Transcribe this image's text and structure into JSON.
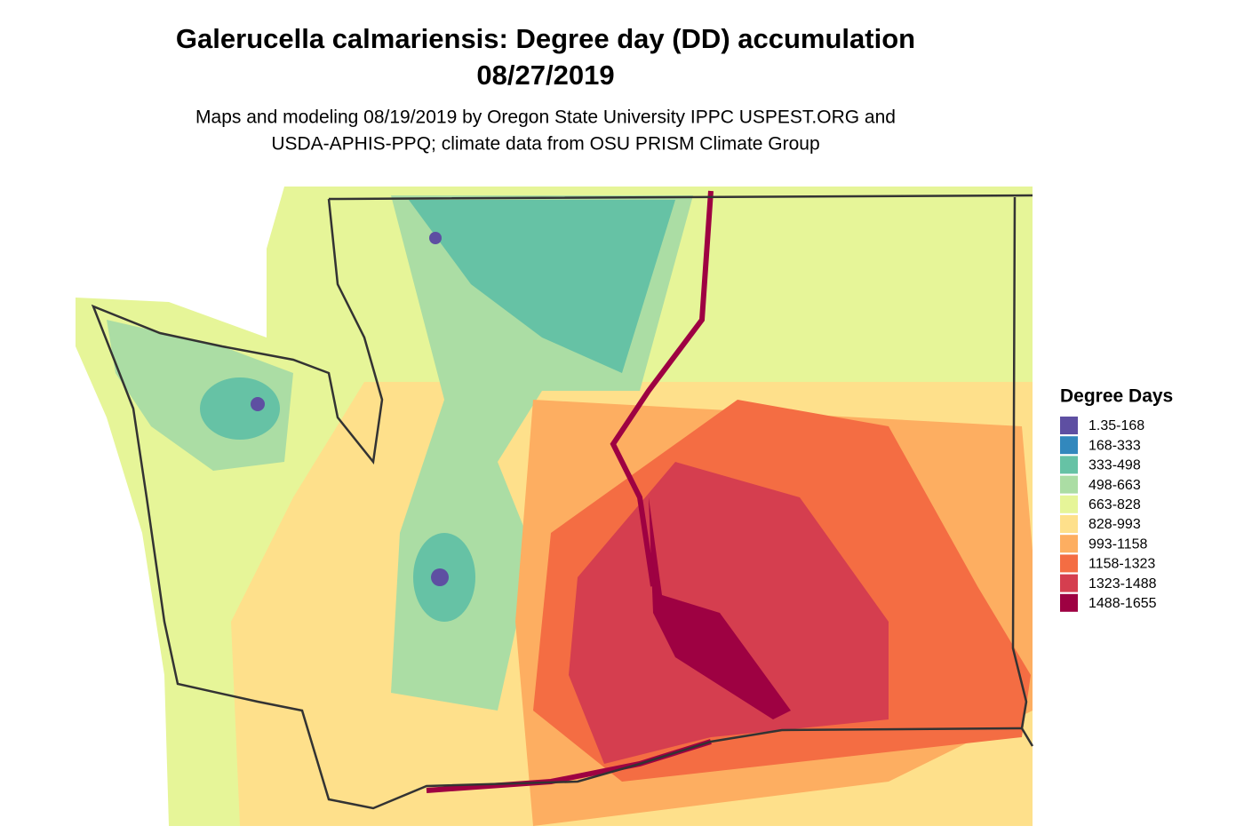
{
  "title": [
    "Galerucella calmariensis: Degree day (DD) accumulation",
    "08/27/2019"
  ],
  "subtitle": [
    "Maps and modeling 08/19/2019 by Oregon State University IPPC USPEST.ORG and",
    "USDA-APHIS-PPQ; climate data from OSU PRISM Climate Group"
  ],
  "legend": {
    "title": "Degree Days",
    "items": [
      {
        "label": "1.35-168",
        "color": "#5e4fa2"
      },
      {
        "label": "168-333",
        "color": "#3288bd"
      },
      {
        "label": "333-498",
        "color": "#66c2a5"
      },
      {
        "label": "498-663",
        "color": "#abdda4"
      },
      {
        "label": "663-828",
        "color": "#e6f598"
      },
      {
        "label": "828-993",
        "color": "#fee08b"
      },
      {
        "label": "993-1158",
        "color": "#fdae61"
      },
      {
        "label": "1158-1323",
        "color": "#f46d43"
      },
      {
        "label": "1323-1488",
        "color": "#d53e4f"
      },
      {
        "label": "1488-1655",
        "color": "#9e0142"
      }
    ]
  }
}
